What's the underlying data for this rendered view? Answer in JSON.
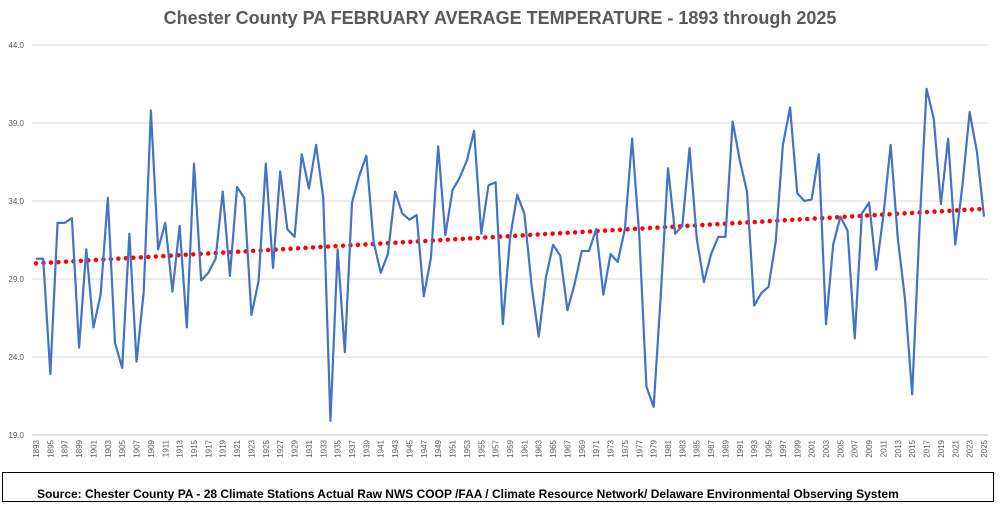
{
  "chart_data": {
    "type": "line",
    "title": "Chester County PA FEBRUARY AVERAGE TEMPERATURE - 1893 through 2025",
    "xlabel": "",
    "ylabel": "",
    "ylim": [
      19.0,
      44.0
    ],
    "yticks": [
      "19.0",
      "24.0",
      "29.0",
      "34.0",
      "39.0",
      "44.0"
    ],
    "x": [
      1893,
      1894,
      1895,
      1896,
      1897,
      1898,
      1899,
      1900,
      1901,
      1902,
      1903,
      1904,
      1905,
      1906,
      1907,
      1908,
      1909,
      1910,
      1911,
      1912,
      1913,
      1914,
      1915,
      1916,
      1917,
      1918,
      1919,
      1920,
      1921,
      1922,
      1923,
      1924,
      1925,
      1926,
      1927,
      1928,
      1929,
      1930,
      1931,
      1932,
      1933,
      1934,
      1935,
      1936,
      1937,
      1938,
      1939,
      1940,
      1941,
      1942,
      1943,
      1944,
      1945,
      1946,
      1947,
      1948,
      1949,
      1950,
      1951,
      1952,
      1953,
      1954,
      1955,
      1956,
      1957,
      1958,
      1959,
      1960,
      1961,
      1962,
      1963,
      1964,
      1965,
      1966,
      1967,
      1968,
      1969,
      1970,
      1971,
      1972,
      1973,
      1974,
      1975,
      1976,
      1977,
      1978,
      1979,
      1980,
      1981,
      1982,
      1983,
      1984,
      1985,
      1986,
      1987,
      1988,
      1989,
      1990,
      1991,
      1992,
      1993,
      1994,
      1995,
      1996,
      1997,
      1998,
      1999,
      2000,
      2001,
      2002,
      2003,
      2004,
      2005,
      2006,
      2007,
      2008,
      2009,
      2010,
      2011,
      2012,
      2013,
      2014,
      2015,
      2016,
      2017,
      2018,
      2019,
      2020,
      2021,
      2022,
      2023,
      2024,
      2025
    ],
    "xtick_labels": [
      "1893",
      "1895",
      "1897",
      "1899",
      "1901",
      "1903",
      "1905",
      "1907",
      "1909",
      "1911",
      "1913",
      "1915",
      "1917",
      "1919",
      "1921",
      "1923",
      "1925",
      "1927",
      "1929",
      "1931",
      "1933",
      "1935",
      "1937",
      "1939",
      "1941",
      "1943",
      "1945",
      "1947",
      "1949",
      "1951",
      "1953",
      "1955",
      "1957",
      "1959",
      "1961",
      "1963",
      "1965",
      "1967",
      "1969",
      "1971",
      "1973",
      "1975",
      "1977",
      "1979",
      "1981",
      "1983",
      "1985",
      "1987",
      "1989",
      "1991",
      "1993",
      "1995",
      "1997",
      "1999",
      "2001",
      "2003",
      "2005",
      "2007",
      "2009",
      "2011",
      "2013",
      "2015",
      "2017",
      "2019",
      "2021",
      "2023",
      "2025"
    ],
    "series": [
      {
        "style": "line",
        "color": "#4472C4",
        "values": [
          30.3,
          30.3,
          22.9,
          32.6,
          32.6,
          32.9,
          24.6,
          30.9,
          25.9,
          28.0,
          34.2,
          24.9,
          23.3,
          31.9,
          23.7,
          28.2,
          39.8,
          30.9,
          32.6,
          28.2,
          32.4,
          25.9,
          36.4,
          28.9,
          29.4,
          30.3,
          34.6,
          29.2,
          34.9,
          34.2,
          26.7,
          28.9,
          36.4,
          29.7,
          35.9,
          32.2,
          31.7,
          37.0,
          34.8,
          37.6,
          34.2,
          19.9,
          30.9,
          24.3,
          33.9,
          35.6,
          36.9,
          31.4,
          29.4,
          30.6,
          34.6,
          33.2,
          32.8,
          33.1,
          27.9,
          30.4,
          37.5,
          31.8,
          34.7,
          35.5,
          36.6,
          38.5,
          31.9,
          35.0,
          35.2,
          26.1,
          31.6,
          34.4,
          33.2,
          28.6,
          25.3,
          29.1,
          31.2,
          30.5,
          27.0,
          28.7,
          30.8,
          30.8,
          32.2,
          28.0,
          30.6,
          30.1,
          32.2,
          38.0,
          31.8,
          22.1,
          20.8,
          28.0,
          36.1,
          31.9,
          32.4,
          37.4,
          31.6,
          28.8,
          30.6,
          31.7,
          31.7,
          39.1,
          36.6,
          34.6,
          27.3,
          28.1,
          28.5,
          31.4,
          37.6,
          40.0,
          34.5,
          34.0,
          34.1,
          37.0,
          26.1,
          31.2,
          33.0,
          32.1,
          25.2,
          33.2,
          33.9,
          29.6,
          33.1,
          37.6,
          31.6,
          27.7,
          21.6,
          32.1,
          41.2,
          39.3,
          33.8,
          38.0,
          31.2,
          35.0,
          39.7,
          37.2,
          33.0
        ]
      },
      {
        "style": "dotted-trend",
        "color": "#FF0000",
        "values_from_to": [
          30.0,
          33.5
        ]
      }
    ],
    "grid": true,
    "legend": "none",
    "source_note": "Source: Chester County PA - 28 Climate Stations Actual Raw NWS COOP /FAA / Climate Resource Network/ Delaware Environmental Observing System"
  }
}
